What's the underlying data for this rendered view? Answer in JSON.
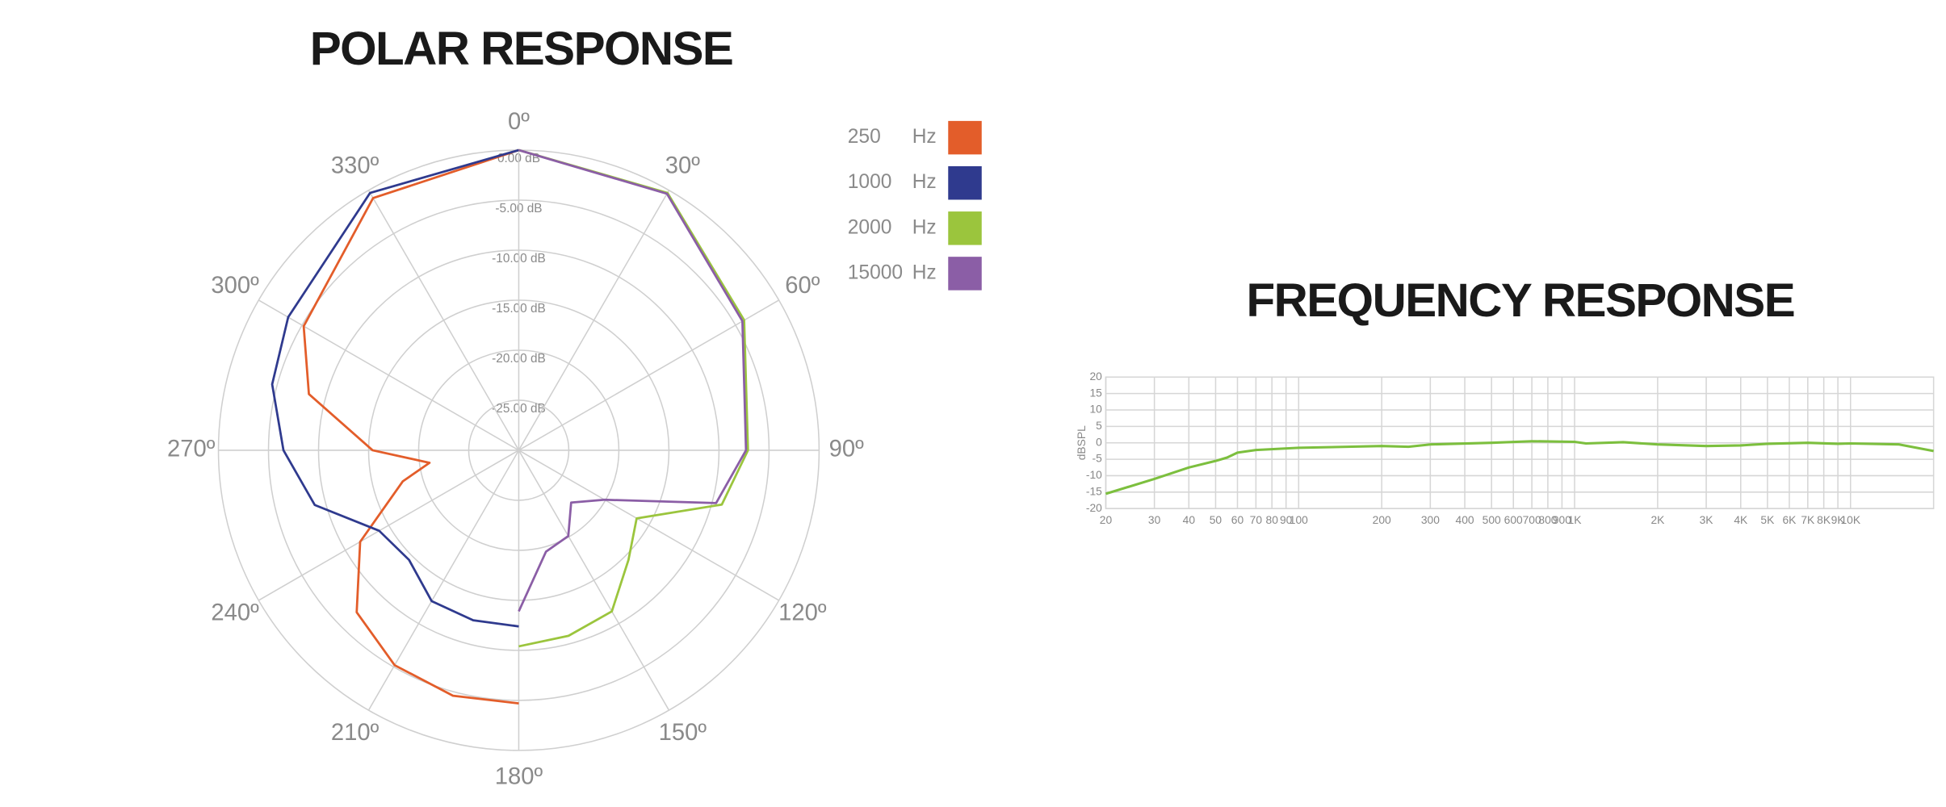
{
  "chart_data": [
    {
      "type": "polar",
      "title": "POLAR RESPONSE",
      "legend_unit": "Hz",
      "thetaticks": [
        {
          "value": 0,
          "label": "0º"
        },
        {
          "value": 30,
          "label": "30º"
        },
        {
          "value": 60,
          "label": "60º"
        },
        {
          "value": 90,
          "label": "90º"
        },
        {
          "value": 120,
          "label": "120º"
        },
        {
          "value": 150,
          "label": "150º"
        },
        {
          "value": 180,
          "label": "180º"
        },
        {
          "value": 210,
          "label": "210º"
        },
        {
          "value": 240,
          "label": "240º"
        },
        {
          "value": 270,
          "label": "270º"
        },
        {
          "value": 300,
          "label": "300º"
        },
        {
          "value": 330,
          "label": "330º"
        }
      ],
      "rlim": [
        -30,
        0
      ],
      "rticks": [
        {
          "value": 0,
          "label": "0.00 dB"
        },
        {
          "value": -5,
          "label": "-5.00 dB"
        },
        {
          "value": -10,
          "label": "-10.00 dB"
        },
        {
          "value": -15,
          "label": "-15.00 dB"
        },
        {
          "value": -20,
          "label": "-20.00 dB"
        },
        {
          "value": -25,
          "label": "-25.00 dB"
        }
      ],
      "series": [
        {
          "name": "250",
          "color": "#e35d2a",
          "theta": [
            360,
            330,
            300,
            285,
            270,
            262,
            255,
            240,
            225,
            210,
            195,
            180
          ],
          "values": [
            0,
            -0.9,
            -5.2,
            -8.3,
            -15.4,
            -21,
            -18,
            -11.7,
            -7.1,
            -5.2,
            -4.6,
            -4.7
          ]
        },
        {
          "name": "1000",
          "color": "#2f3a8e",
          "theta": [
            360,
            330,
            300,
            285,
            270,
            255,
            240,
            225,
            210,
            195,
            180
          ],
          "values": [
            0,
            -0.3,
            -3.4,
            -4.5,
            -6.5,
            -8.9,
            -13.9,
            -14.5,
            -12.6,
            -12.4,
            -12.4
          ]
        },
        {
          "name": "2000",
          "color": "#9bc53d",
          "theta": [
            0,
            30,
            60,
            90,
            105,
            120,
            135,
            150,
            165,
            180
          ],
          "values": [
            0,
            -0.3,
            -4,
            -7.1,
            -9,
            -16.4,
            -14.5,
            -11.4,
            -10.8,
            -10.4
          ]
        },
        {
          "name": "15000",
          "color": "#8b5ea6",
          "theta": [
            0,
            30,
            60,
            90,
            105,
            120,
            135,
            150,
            165,
            180
          ],
          "values": [
            0,
            -0.4,
            -4.2,
            -7.3,
            -9.6,
            -20.1,
            -22.6,
            -20.1,
            -19.5,
            -13.9
          ]
        }
      ]
    },
    {
      "type": "line",
      "title": "FREQUENCY RESPONSE",
      "ylabel": "dBSPL",
      "x_scale": "log",
      "color": "#7cbf3e",
      "xlim": [
        20,
        20000
      ],
      "ylim": [
        -20,
        20
      ],
      "xticks": [
        20,
        30,
        40,
        50,
        60,
        70,
        80,
        90,
        100,
        200,
        300,
        400,
        500,
        600,
        700,
        800,
        900,
        {
          "value": 1000,
          "label": "1K"
        },
        {
          "value": 2000,
          "label": "2K"
        },
        {
          "value": 3000,
          "label": "3K"
        },
        {
          "value": 4000,
          "label": "4K"
        },
        {
          "value": 5000,
          "label": "5K"
        },
        {
          "value": 6000,
          "label": "6K"
        },
        {
          "value": 7000,
          "label": "7K"
        },
        {
          "value": 8000,
          "label": "8K"
        },
        {
          "value": 9000,
          "label": "9K"
        },
        {
          "value": 10000,
          "label": "10K"
        }
      ],
      "yticks": [
        20,
        15,
        10,
        5,
        0,
        -5,
        -10,
        -15,
        -20
      ],
      "x": [
        20,
        30,
        40,
        50,
        55,
        60,
        70,
        100,
        150,
        200,
        250,
        300,
        500,
        700,
        1000,
        1100,
        1500,
        2000,
        3000,
        4000,
        5000,
        7000,
        9000,
        10000,
        15000,
        20000
      ],
      "values": [
        -15.5,
        -11,
        -7.5,
        -5.5,
        -4.5,
        -3,
        -2.2,
        -1.5,
        -1.2,
        -1,
        -1.2,
        -0.5,
        0,
        0.5,
        0.3,
        -0.2,
        0.2,
        -0.5,
        -1,
        -0.8,
        -0.3,
        0,
        -0.3,
        -0.2,
        -0.5,
        -2.5
      ]
    }
  ]
}
